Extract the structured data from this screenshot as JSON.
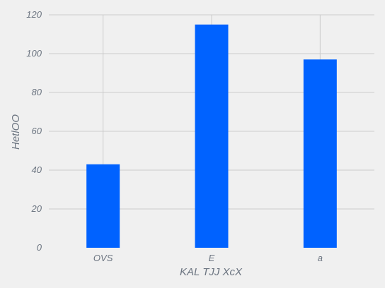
{
  "chart_data": {
    "type": "bar",
    "categories": [
      "OVS",
      "E",
      "a"
    ],
    "values": [
      43,
      115,
      97
    ],
    "xlabel": "KAL TJJ XcX",
    "ylabel": "HetlOO",
    "ylim": [
      0,
      120
    ],
    "yticks": [
      0,
      20,
      40,
      60,
      80,
      100,
      120
    ],
    "grid": true,
    "bar_color": "#0062ff",
    "background_color": "#f0f0f0",
    "grid_color": "#cbcbcb",
    "text_color": "#6b7480"
  }
}
